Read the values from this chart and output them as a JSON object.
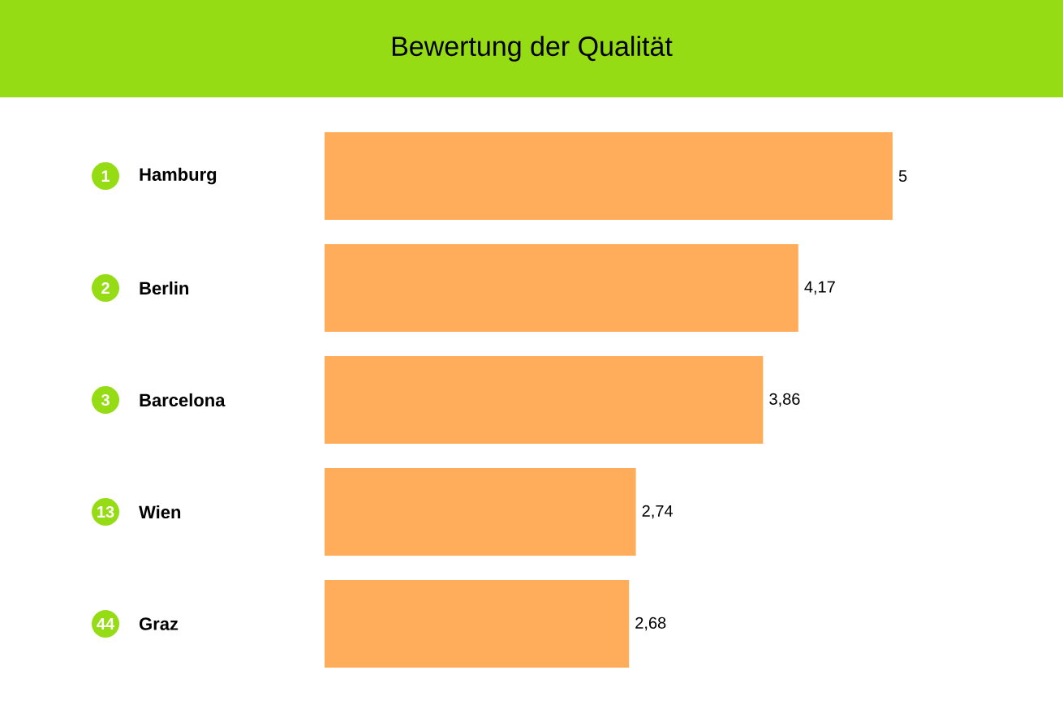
{
  "chart_data": {
    "type": "bar",
    "orientation": "horizontal",
    "title": "Bewertung der Qualität",
    "categories": [
      "Hamburg",
      "Berlin",
      "Barcelona",
      "Wien",
      "Graz"
    ],
    "values": [
      5,
      4.17,
      3.86,
      2.74,
      2.68
    ],
    "value_labels": [
      "5",
      "4,17",
      "3,86",
      "2,74",
      "2,68"
    ],
    "color": "#ffad5b",
    "xlim": [
      0,
      5
    ],
    "tick_labels": "y",
    "grid": false,
    "annotations": [
      "1",
      "2",
      "3",
      "13",
      "44"
    ]
  }
}
